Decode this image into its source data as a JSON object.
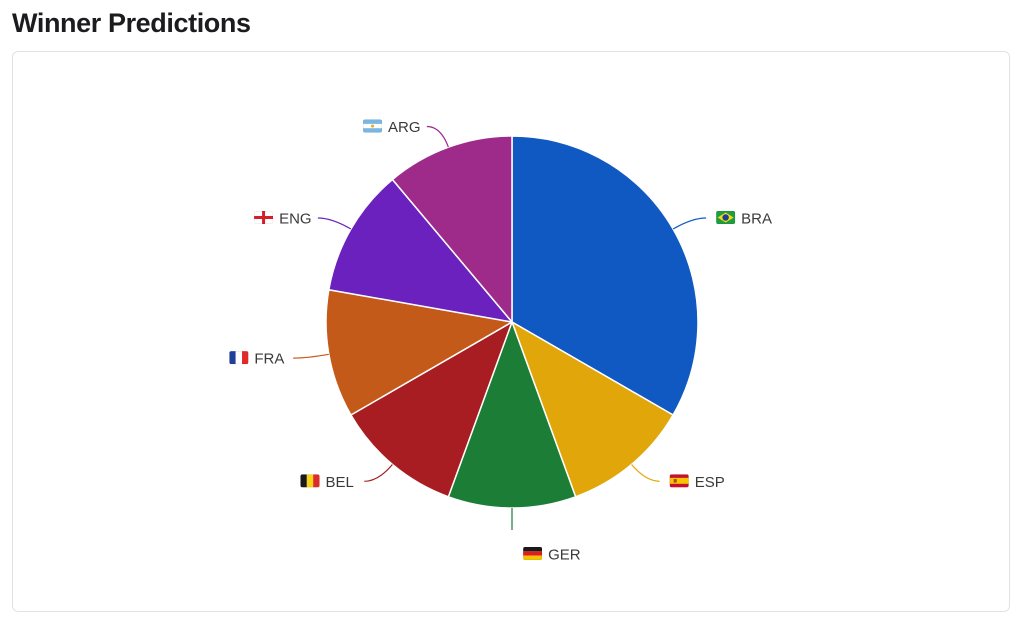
{
  "header": {
    "title": "Winner Predictions"
  },
  "chart_data": {
    "type": "pie",
    "title": "",
    "start_angle_deg": 0,
    "direction": "clockwise",
    "slices": [
      {
        "label": "BRA",
        "flag": "brazil",
        "value": 33.3,
        "color": "#1159c2"
      },
      {
        "label": "ESP",
        "flag": "spain",
        "value": 11.1,
        "color": "#e1a70a"
      },
      {
        "label": "GER",
        "flag": "germany",
        "value": 11.1,
        "color": "#1b7d36"
      },
      {
        "label": "BEL",
        "flag": "belgium",
        "value": 11.1,
        "color": "#a81d21"
      },
      {
        "label": "FRA",
        "flag": "france",
        "value": 11.1,
        "color": "#c45a1a"
      },
      {
        "label": "ENG",
        "flag": "england",
        "value": 11.1,
        "color": "#6b21bd"
      },
      {
        "label": "ARG",
        "flag": "argentina",
        "value": 11.1,
        "color": "#9e2a8a"
      }
    ]
  }
}
